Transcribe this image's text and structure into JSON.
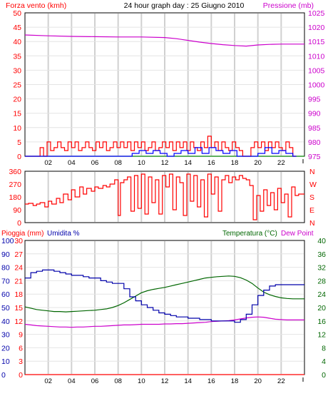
{
  "header": {
    "title": "24 hour graph day : 25 Giugno 2010",
    "left_label": "Forza vento (kmh)",
    "right_label": "Pressione (mb)"
  },
  "colors": {
    "wind": "#ff0000",
    "gust": "#0000ff",
    "avg": "#008000",
    "pressure": "#cc00cc",
    "direction": "#ff0000",
    "humidity": "#0000aa",
    "temperature": "#006600",
    "dewpoint": "#cc00cc",
    "rain": "#ff0000",
    "grid_v": "#d0d0d0",
    "grid_h": "#e4e4e4",
    "axis": "#000000"
  },
  "x_ticks": [
    "02",
    "04",
    "06",
    "08",
    "10",
    "12",
    "14",
    "16",
    "18",
    "20",
    "22"
  ],
  "chart_data": [
    {
      "type": "line",
      "title": "24 hour graph day : 25 Giugno 2010",
      "ylabel": "Forza vento (kmh)",
      "y2label": "Pressione (mb)",
      "xlim": [
        0,
        24
      ],
      "ylim": [
        0,
        50
      ],
      "y2lim": [
        975,
        1025
      ],
      "y_ticks": [
        0,
        5,
        10,
        15,
        20,
        25,
        30,
        35,
        40,
        45,
        50
      ],
      "y2_ticks": [
        975,
        980,
        985,
        990,
        995,
        1000,
        1005,
        1010,
        1015,
        1020,
        1025
      ],
      "series": {
        "wind": {
          "x": [
            0.0,
            1.0,
            1.3,
            1.6,
            1.9,
            2.2,
            2.5,
            2.8,
            3.1,
            3.4,
            3.7,
            4.0,
            4.3,
            4.6,
            4.9,
            5.2,
            5.5,
            5.8,
            6.1,
            6.4,
            6.7,
            7.0,
            7.3,
            7.6,
            7.9,
            8.2,
            8.5,
            8.8,
            9.1,
            9.4,
            9.7,
            10.0,
            10.3,
            10.6,
            10.9,
            11.2,
            11.5,
            11.8,
            12.1,
            12.4,
            12.7,
            13.0,
            13.3,
            13.6,
            13.9,
            14.2,
            14.5,
            14.8,
            15.1,
            15.4,
            15.7,
            16.0,
            16.3,
            16.6,
            16.9,
            17.2,
            17.5,
            17.8,
            18.1,
            18.4,
            18.7,
            19.0,
            19.4,
            19.7,
            20.0,
            20.3,
            20.6,
            20.9,
            21.2,
            21.5,
            21.8,
            22.1,
            22.4,
            22.7,
            23.0,
            23.3
          ],
          "values": [
            0,
            0,
            3,
            0,
            5,
            2,
            3,
            5,
            3,
            2,
            5,
            3,
            5,
            2,
            3,
            5,
            3,
            2,
            5,
            3,
            5,
            2,
            3,
            5,
            3,
            5,
            3,
            5,
            2,
            5,
            3,
            5,
            2,
            3,
            5,
            2,
            3,
            5,
            3,
            5,
            2,
            5,
            3,
            5,
            2,
            5,
            3,
            2,
            5,
            3,
            7,
            3,
            5,
            2,
            5,
            3,
            2,
            5,
            3,
            2,
            0,
            0,
            3,
            5,
            3,
            5,
            2,
            5,
            3,
            5,
            3,
            2,
            5,
            3,
            0,
            0
          ]
        },
        "gust": {
          "x": [
            0,
            8.6,
            9.2,
            9.8,
            10.4,
            11.0,
            11.6,
            12.2,
            12.8,
            13.4,
            14.0,
            14.6,
            15.2,
            15.8,
            16.4,
            17.0,
            17.6,
            18.2,
            18.8,
            19.4,
            20.0,
            20.6,
            21.2,
            21.8,
            22.4,
            23.0,
            23.3
          ],
          "values": [
            0,
            0,
            1,
            2,
            1,
            2,
            1,
            0,
            1,
            2,
            1,
            3,
            1,
            3,
            2,
            1,
            2,
            0,
            0,
            0,
            1,
            3,
            1,
            2,
            1,
            0,
            0
          ]
        },
        "avg": {
          "x": [
            0,
            24
          ],
          "values": [
            0,
            0
          ]
        },
        "pressure": {
          "x": [
            0,
            2,
            4,
            6,
            8,
            10,
            12,
            13,
            14,
            15,
            16,
            17,
            18,
            19,
            20,
            21,
            22,
            23,
            24
          ],
          "values": [
            1017.3,
            1017.0,
            1016.8,
            1016.7,
            1016.6,
            1016.6,
            1016.4,
            1016.0,
            1015.4,
            1014.8,
            1014.3,
            1013.9,
            1013.6,
            1013.4,
            1013.8,
            1014.0,
            1014.1,
            1014.1,
            1014.1
          ]
        }
      }
    },
    {
      "type": "line",
      "ylim": [
        0,
        360
      ],
      "y_ticks": [
        0,
        90,
        180,
        270,
        360
      ],
      "compass_labels": [
        "N",
        "W",
        "S",
        "E",
        "N"
      ],
      "series": {
        "direction": {
          "x": [
            0.0,
            0.3,
            0.7,
            1.0,
            1.3,
            1.7,
            2.0,
            2.3,
            2.7,
            3.0,
            3.3,
            3.7,
            4.0,
            4.3,
            4.7,
            5.0,
            5.3,
            5.7,
            6.0,
            6.3,
            6.7,
            7.0,
            7.3,
            7.7,
            8.0,
            8.2,
            8.5,
            8.8,
            9.1,
            9.4,
            9.7,
            10.0,
            10.3,
            10.6,
            10.9,
            11.2,
            11.5,
            11.8,
            12.1,
            12.4,
            12.7,
            13.0,
            13.3,
            13.6,
            13.9,
            14.2,
            14.5,
            14.8,
            15.1,
            15.4,
            15.7,
            16.0,
            16.3,
            16.6,
            16.9,
            17.2,
            17.5,
            17.8,
            18.1,
            18.4,
            18.7,
            19.0,
            19.3,
            19.6,
            19.9,
            20.2,
            20.5,
            20.8,
            21.1,
            21.4,
            21.7,
            22.0,
            22.3,
            22.6,
            22.9,
            23.2,
            23.5,
            24.0
          ],
          "values": [
            130,
            135,
            120,
            130,
            140,
            110,
            150,
            130,
            170,
            140,
            200,
            160,
            230,
            180,
            250,
            200,
            240,
            220,
            250,
            240,
            260,
            250,
            270,
            300,
            50,
            280,
            300,
            320,
            80,
            330,
            100,
            340,
            60,
            320,
            140,
            300,
            60,
            330,
            250,
            340,
            90,
            320,
            280,
            50,
            340,
            150,
            330,
            110,
            300,
            40,
            340,
            200,
            320,
            80,
            300,
            330,
            280,
            320,
            300,
            330,
            310,
            300,
            260,
            20,
            190,
            80,
            230,
            120,
            210,
            90,
            240,
            140,
            200,
            40,
            250,
            190,
            200,
            200
          ]
        }
      }
    },
    {
      "type": "line",
      "ylabel": "Pioggia (mm)",
      "y1label": "Umidita %",
      "y2label": "Temperatura (°C)",
      "y3label": "Dew Point",
      "y_rain_ticks": [
        0,
        3,
        6,
        9,
        12,
        15,
        18,
        21,
        24,
        27,
        30
      ],
      "y_hum_ticks": [
        0,
        10,
        20,
        30,
        40,
        50,
        60,
        70,
        80,
        90,
        100
      ],
      "y_temp_ticks": [
        0,
        4,
        8,
        12,
        16,
        20,
        24,
        28,
        32,
        36,
        40
      ],
      "ylim": [
        0,
        100
      ],
      "y2lim": [
        0,
        40
      ],
      "series": {
        "humidity": {
          "x": [
            0.0,
            0.5,
            1.0,
            1.5,
            2.0,
            2.5,
            3.0,
            3.5,
            4.0,
            4.5,
            5.0,
            5.5,
            6.0,
            6.5,
            7.0,
            7.5,
            8.0,
            8.5,
            9.0,
            9.5,
            10.0,
            10.5,
            11.0,
            11.5,
            12.0,
            12.5,
            13.0,
            13.5,
            14.0,
            14.5,
            15.0,
            15.5,
            16.0,
            16.5,
            17.0,
            17.5,
            18.0,
            18.5,
            19.0,
            19.5,
            20.0,
            20.5,
            21.0,
            21.5,
            22.0,
            22.5,
            23.0,
            23.5,
            24.0
          ],
          "values": [
            72,
            76,
            77,
            78,
            78,
            77,
            76,
            75,
            74,
            74,
            73,
            72,
            72,
            70,
            69,
            68,
            68,
            64,
            58,
            55,
            52,
            50,
            48,
            46,
            45,
            44,
            43,
            43,
            42,
            42,
            41,
            41,
            40,
            40,
            40,
            40,
            39,
            41,
            45,
            52,
            59,
            63,
            66,
            67,
            67,
            67,
            67,
            67,
            67
          ]
        },
        "temperature": {
          "x": [
            0.0,
            0.5,
            1.0,
            1.5,
            2.0,
            2.5,
            3.0,
            3.5,
            4.0,
            4.5,
            5.0,
            5.5,
            6.0,
            6.5,
            7.0,
            7.5,
            8.0,
            8.5,
            9.0,
            9.5,
            10.0,
            10.5,
            11.0,
            11.5,
            12.0,
            12.5,
            13.0,
            13.5,
            14.0,
            14.5,
            15.0,
            15.5,
            16.0,
            16.5,
            17.0,
            17.5,
            18.0,
            18.5,
            19.0,
            19.5,
            20.0,
            20.5,
            21.0,
            21.5,
            22.0,
            22.5,
            23.0,
            23.5,
            24.0
          ],
          "values": [
            20.2,
            19.8,
            19.4,
            19.2,
            19.0,
            18.8,
            18.8,
            18.7,
            18.8,
            18.9,
            19.0,
            19.1,
            19.2,
            19.4,
            19.6,
            20.0,
            20.6,
            21.4,
            22.4,
            23.4,
            24.4,
            25.0,
            25.4,
            25.7,
            26.0,
            26.4,
            26.8,
            27.2,
            27.6,
            28.0,
            28.4,
            28.8,
            29.0,
            29.2,
            29.3,
            29.4,
            29.3,
            28.9,
            28.2,
            27.2,
            25.8,
            24.6,
            23.8,
            23.3,
            22.9,
            22.7,
            22.6,
            22.6,
            22.6
          ]
        },
        "dewpoint": {
          "x": [
            0.0,
            0.5,
            1.0,
            1.5,
            2.0,
            2.5,
            3.0,
            3.5,
            4.0,
            4.5,
            5.0,
            5.5,
            6.0,
            6.5,
            7.0,
            7.5,
            8.0,
            8.5,
            9.0,
            9.5,
            10.0,
            10.5,
            11.0,
            11.5,
            12.0,
            12.5,
            13.0,
            13.5,
            14.0,
            14.5,
            15.0,
            15.5,
            16.0,
            16.5,
            17.0,
            17.5,
            18.0,
            18.5,
            19.0,
            19.5,
            20.0,
            20.5,
            21.0,
            21.5,
            22.0,
            22.5,
            23.0,
            23.5,
            24.0
          ],
          "values": [
            15.0,
            14.8,
            14.6,
            14.5,
            14.4,
            14.3,
            14.2,
            14.2,
            14.1,
            14.2,
            14.2,
            14.3,
            14.4,
            14.4,
            14.5,
            14.6,
            14.7,
            14.8,
            14.8,
            14.9,
            15.0,
            15.0,
            15.0,
            15.0,
            15.1,
            15.1,
            15.2,
            15.2,
            15.3,
            15.4,
            15.5,
            15.6,
            15.8,
            15.9,
            16.0,
            16.1,
            16.3,
            16.6,
            16.9,
            17.1,
            17.2,
            17.1,
            16.8,
            16.5,
            16.4,
            16.3,
            16.3,
            16.3,
            16.3
          ]
        },
        "rain": {
          "x": [
            0,
            24
          ],
          "values": [
            0,
            0
          ]
        }
      }
    }
  ]
}
